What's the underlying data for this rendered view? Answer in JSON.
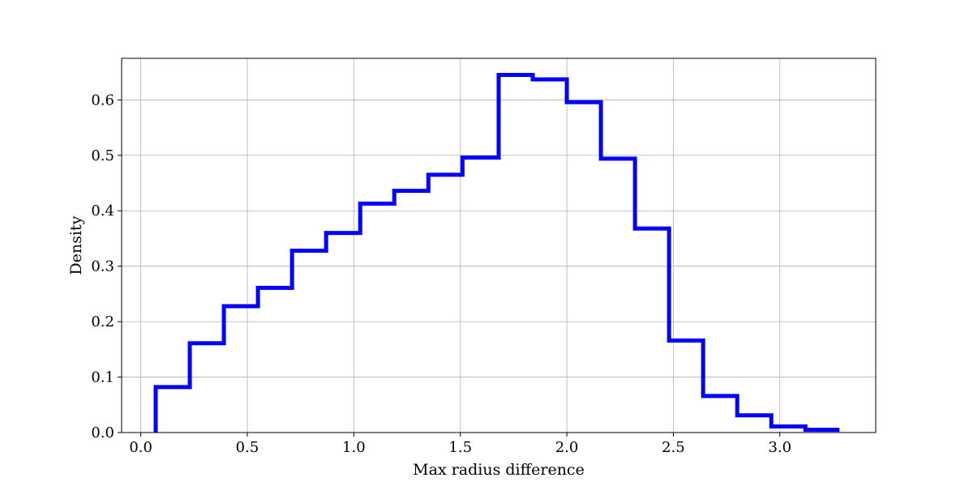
{
  "chart_data": {
    "type": "histogram-step",
    "title": "",
    "xlabel": "Max radius difference",
    "ylabel": "Density",
    "xlim": [
      -0.09,
      3.45
    ],
    "ylim": [
      0.0,
      0.675
    ],
    "x_ticks": [
      0.0,
      0.5,
      1.0,
      1.5,
      2.0,
      2.5,
      3.0
    ],
    "x_tick_labels": [
      "0.0",
      "0.5",
      "1.0",
      "1.5",
      "2.0",
      "2.5",
      "3.0"
    ],
    "y_ticks": [
      0.0,
      0.1,
      0.2,
      0.3,
      0.4,
      0.5,
      0.6
    ],
    "y_tick_labels": [
      "0.0",
      "0.1",
      "0.2",
      "0.3",
      "0.4",
      "0.5",
      "0.6"
    ],
    "grid": true,
    "series": [
      {
        "color": "#0000ff",
        "bin_edges": [
          0.07,
          0.23,
          0.39,
          0.55,
          0.71,
          0.87,
          1.03,
          1.19,
          1.35,
          1.51,
          1.68,
          1.84,
          2.0,
          2.16,
          2.32,
          2.48,
          2.64,
          2.8,
          2.96,
          3.12,
          3.28
        ],
        "values": [
          0.082,
          0.161,
          0.228,
          0.261,
          0.328,
          0.36,
          0.413,
          0.436,
          0.465,
          0.496,
          0.645,
          0.637,
          0.596,
          0.494,
          0.368,
          0.166,
          0.066,
          0.031,
          0.011,
          0.005
        ]
      }
    ]
  }
}
